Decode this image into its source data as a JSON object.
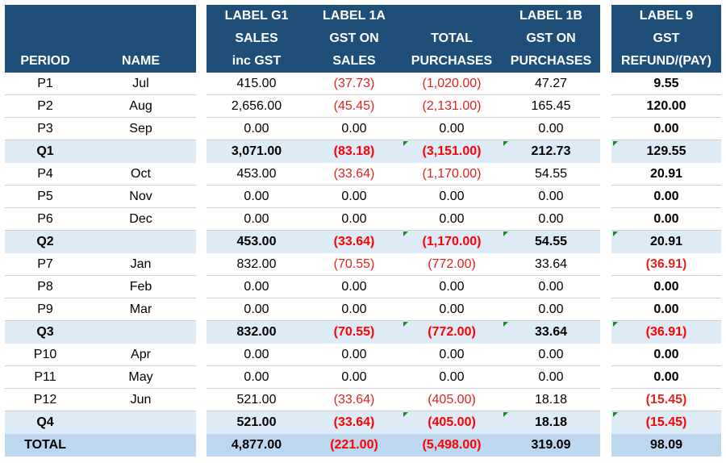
{
  "headers": {
    "period": "PERIOD",
    "name": "NAME",
    "g1": [
      "LABEL G1",
      "SALES",
      "inc GST"
    ],
    "l1a": [
      "LABEL 1A",
      "GST ON",
      "SALES"
    ],
    "tp": [
      "",
      "TOTAL",
      "PURCHASES"
    ],
    "l1b": [
      "LABEL 1B",
      "GST ON",
      "PURCHASES"
    ],
    "l9": [
      "LABEL 9",
      "GST",
      "REFUND/(PAY)"
    ]
  },
  "rows": [
    {
      "kind": "normal",
      "period": "P1",
      "name": "Jul",
      "g1": "415.00",
      "l1a": "(37.73)",
      "tp": "(1,020.00)",
      "l1b": "47.27",
      "l9": "9.55"
    },
    {
      "kind": "normal",
      "period": "P2",
      "name": "Aug",
      "g1": "2,656.00",
      "l1a": "(45.45)",
      "tp": "(2,131.00)",
      "l1b": "165.45",
      "l9": "120.00"
    },
    {
      "kind": "normal",
      "period": "P3",
      "name": "Sep",
      "g1": "0.00",
      "l1a": "0.00",
      "tp": "0.00",
      "l1b": "0.00",
      "l9": "0.00"
    },
    {
      "kind": "quarter",
      "period": "Q1",
      "name": "",
      "g1": "3,071.00",
      "l1a": "(83.18)",
      "tp": "(3,151.00)",
      "l1b": "212.73",
      "l9": "129.55"
    },
    {
      "kind": "normal",
      "period": "P4",
      "name": "Oct",
      "g1": "453.00",
      "l1a": "(33.64)",
      "tp": "(1,170.00)",
      "l1b": "54.55",
      "l9": "20.91"
    },
    {
      "kind": "normal",
      "period": "P5",
      "name": "Nov",
      "g1": "0.00",
      "l1a": "0.00",
      "tp": "0.00",
      "l1b": "0.00",
      "l9": "0.00"
    },
    {
      "kind": "normal",
      "period": "P6",
      "name": "Dec",
      "g1": "0.00",
      "l1a": "0.00",
      "tp": "0.00",
      "l1b": "0.00",
      "l9": "0.00"
    },
    {
      "kind": "quarter",
      "period": "Q2",
      "name": "",
      "g1": "453.00",
      "l1a": "(33.64)",
      "tp": "(1,170.00)",
      "l1b": "54.55",
      "l9": "20.91"
    },
    {
      "kind": "normal",
      "period": "P7",
      "name": "Jan",
      "g1": "832.00",
      "l1a": "(70.55)",
      "tp": "(772.00)",
      "l1b": "33.64",
      "l9": "(36.91)"
    },
    {
      "kind": "normal",
      "period": "P8",
      "name": "Feb",
      "g1": "0.00",
      "l1a": "0.00",
      "tp": "0.00",
      "l1b": "0.00",
      "l9": "0.00"
    },
    {
      "kind": "normal",
      "period": "P9",
      "name": "Mar",
      "g1": "0.00",
      "l1a": "0.00",
      "tp": "0.00",
      "l1b": "0.00",
      "l9": "0.00"
    },
    {
      "kind": "quarter",
      "period": "Q3",
      "name": "",
      "g1": "832.00",
      "l1a": "(70.55)",
      "tp": "(772.00)",
      "l1b": "33.64",
      "l9": "(36.91)"
    },
    {
      "kind": "normal",
      "period": "P10",
      "name": "Apr",
      "g1": "0.00",
      "l1a": "0.00",
      "tp": "0.00",
      "l1b": "0.00",
      "l9": "0.00"
    },
    {
      "kind": "normal",
      "period": "P11",
      "name": "May",
      "g1": "0.00",
      "l1a": "0.00",
      "tp": "0.00",
      "l1b": "0.00",
      "l9": "0.00"
    },
    {
      "kind": "normal",
      "period": "P12",
      "name": "Jun",
      "g1": "521.00",
      "l1a": "(33.64)",
      "tp": "(405.00)",
      "l1b": "18.18",
      "l9": "(15.45)"
    },
    {
      "kind": "quarter",
      "period": "Q4",
      "name": "",
      "g1": "521.00",
      "l1a": "(33.64)",
      "tp": "(405.00)",
      "l1b": "18.18",
      "l9": "(15.45)"
    },
    {
      "kind": "total",
      "period": "TOTAL",
      "name": "",
      "g1": "4,877.00",
      "l1a": "(221.00)",
      "tp": "(5,498.00)",
      "l1b": "319.09",
      "l9": "98.09"
    }
  ],
  "colors": {
    "header_bg": "#1f4e79",
    "quarter_bg": "#ddebf7",
    "total_bg": "#bdd7ee",
    "negative": "#ff0000",
    "comment_marker": "#1d8a2a"
  }
}
